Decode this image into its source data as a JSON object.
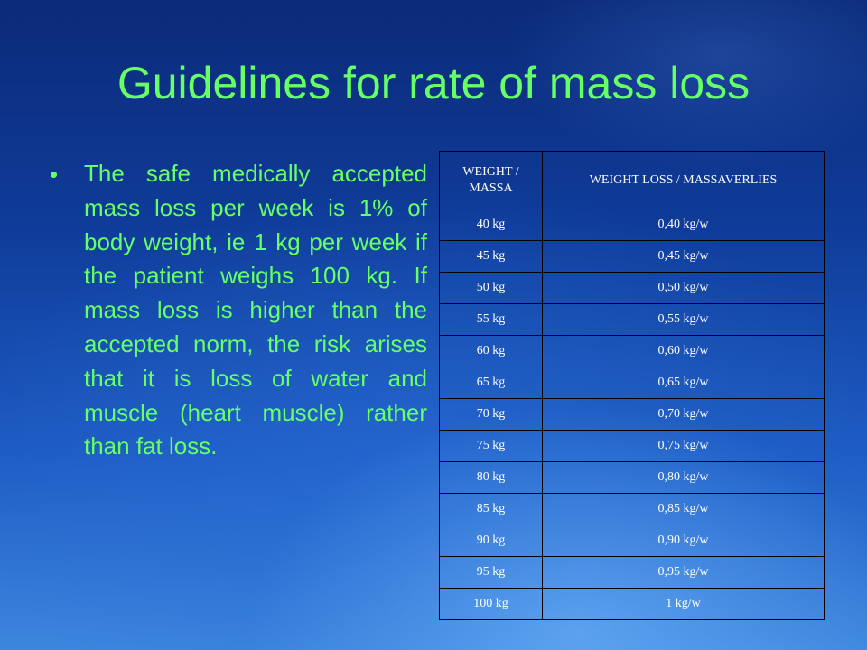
{
  "title": "Guidelines for rate of mass loss",
  "bullet": {
    "symbol": "•",
    "text": "The safe medically accepted mass loss per week is 1% of body weight, ie 1 kg per week if the patient weighs 100 kg. If mass loss is higher than the accepted norm, the risk arises that it is loss of water and muscle (heart muscle) rather than fat loss."
  },
  "table": {
    "headers": [
      "WEIGHT / MASSA",
      "WEIGHT LOSS / MASSAVERLIES"
    ],
    "rows": [
      [
        "40 kg",
        "0,40 kg/w"
      ],
      [
        "45 kg",
        "0,45 kg/w"
      ],
      [
        "50 kg",
        "0,50 kg/w"
      ],
      [
        "55 kg",
        "0,55 kg/w"
      ],
      [
        "60 kg",
        "0,60 kg/w"
      ],
      [
        "65 kg",
        "0,65 kg/w"
      ],
      [
        "70 kg",
        "0,70 kg/w"
      ],
      [
        "75 kg",
        "0,75 kg/w"
      ],
      [
        "80 kg",
        "0,80 kg/w"
      ],
      [
        "85 kg",
        "0,85 kg/w"
      ],
      [
        "90 kg",
        "0,90 kg/w"
      ],
      [
        "95 kg",
        "0,95 kg/w"
      ],
      [
        "100 kg",
        "1 kg/w"
      ]
    ]
  },
  "colors": {
    "text_green": "#66ff66",
    "table_text": "#ffffff",
    "table_border": "#000000",
    "background_top": "#0b2a78",
    "background_bottom": "#3d86de"
  }
}
